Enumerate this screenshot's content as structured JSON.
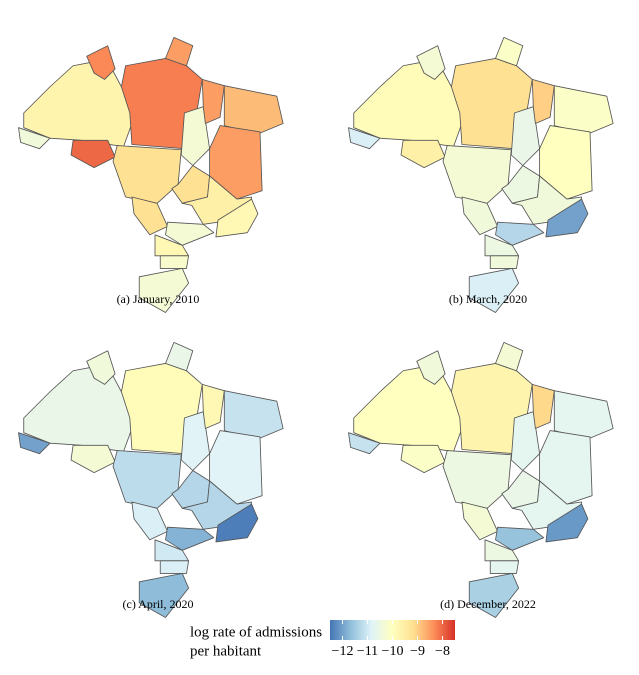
{
  "figure": {
    "panels": [
      {
        "caption": "(a) January, 2010",
        "values": [
          -9.7,
          -8.3,
          -8.2,
          -8.5,
          -10.4,
          -8.0,
          -9.2,
          -10.3,
          -8.5,
          -8.8,
          -8.5,
          -9.2,
          -9.2,
          -9.6,
          -10.3,
          -9.8,
          -9.8,
          -10.2,
          -10.3
        ]
      },
      {
        "caption": "(b) March, 2020",
        "values": [
          -9.9,
          -10.3,
          -9.2,
          -10.1,
          -10.9,
          -9.6,
          -10.3,
          -10.6,
          -9.0,
          -10.1,
          -10.0,
          -10.4,
          -10.5,
          -10.4,
          -11.3,
          -12.0,
          -10.5,
          -10.4,
          -10.9
        ]
      },
      {
        "caption": "(c) April, 2020",
        "values": [
          -10.6,
          -10.4,
          -9.9,
          -10.6,
          -12.0,
          -10.3,
          -11.2,
          -10.8,
          -9.8,
          -11.1,
          -10.8,
          -10.9,
          -11.3,
          -11.3,
          -11.8,
          -12.4,
          -11.0,
          -10.9,
          -11.7
        ]
      },
      {
        "caption": "(d) December, 2022",
        "values": [
          -10.0,
          -10.4,
          -9.7,
          -10.3,
          -11.1,
          -10.1,
          -10.5,
          -10.7,
          -9.1,
          -10.7,
          -10.7,
          -10.3,
          -10.6,
          -10.7,
          -11.6,
          -12.1,
          -10.5,
          -10.7,
          -11.4
        ]
      }
    ],
    "legend": {
      "title": [
        "log rate of admissions",
        "per habitant"
      ],
      "lim": [
        -12.5,
        -7.5
      ],
      "ticks": [
        {
          "value": -12,
          "label": "−12"
        },
        {
          "value": -11,
          "label": "−11"
        },
        {
          "value": -10,
          "label": "−10"
        },
        {
          "value": -9,
          "label": "−9"
        },
        {
          "value": -8,
          "label": "−8"
        }
      ],
      "colors": [
        "#4575b4",
        "#91bfdb",
        "#e0f3f8",
        "#ffffbf",
        "#fee090",
        "#fc8d59",
        "#d73027"
      ]
    }
  }
}
